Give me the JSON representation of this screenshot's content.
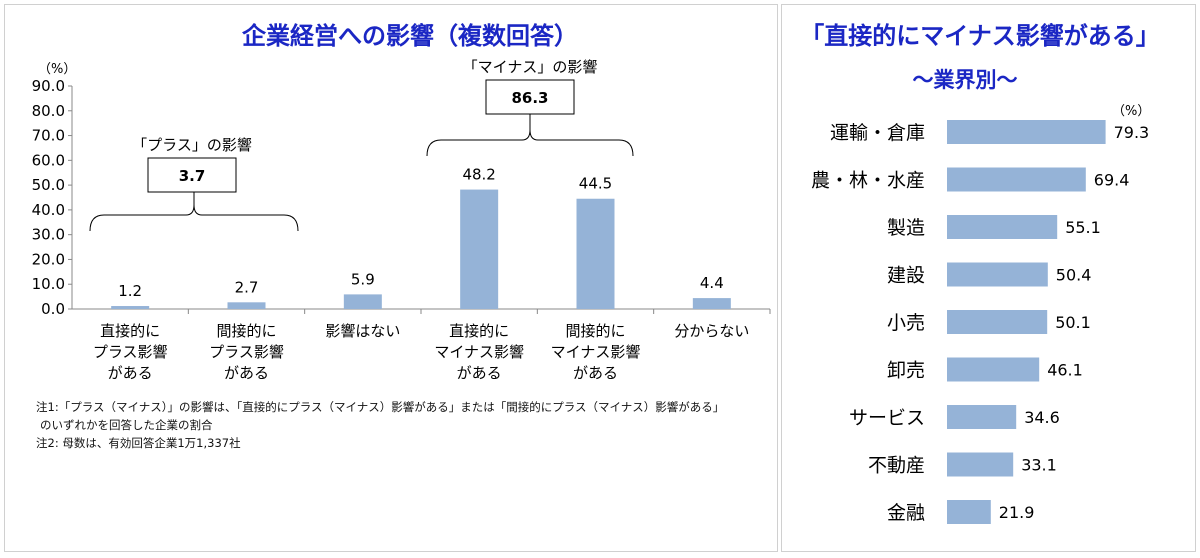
{
  "left_title": "企業経営への影響（複数回答）",
  "right_title": "「直接的にマイナス影響がある」",
  "right_subtitle": "～業界別～",
  "colors": {
    "title": "#1b27c4",
    "bar": "#95b3d7"
  },
  "notes": [
    "注1:「プラス（マイナス）」の影響は、「直接的にプラス（マイナス）影響がある」または「間接的にプラス（マイナス）影響がある」",
    "のいずれかを回答した企業の割合",
    "注2: 母数は、有効回答企業1万1,337社"
  ],
  "chart_data": [
    {
      "type": "bar",
      "orientation": "vertical",
      "title": "企業経営への影響（複数回答）",
      "unit": "（%）",
      "ylim": [
        0,
        90
      ],
      "yticks": [
        "0.0",
        "10.0",
        "20.0",
        "30.0",
        "40.0",
        "50.0",
        "60.0",
        "70.0",
        "80.0",
        "90.0"
      ],
      "categories": [
        [
          "直接的に",
          "プラス影響",
          "がある"
        ],
        [
          "間接的に",
          "プラス影響",
          "がある"
        ],
        [
          "影響はない"
        ],
        [
          "直接的に",
          "マイナス影響",
          "がある"
        ],
        [
          "間接的に",
          "マイナス影響",
          "がある"
        ],
        [
          "分からない"
        ]
      ],
      "values": [
        1.2,
        2.7,
        5.9,
        48.2,
        44.5,
        4.4
      ],
      "value_labels": [
        "1.2",
        "2.7",
        "5.9",
        "48.2",
        "44.5",
        "4.4"
      ],
      "annotations": [
        {
          "label": "「プラス」の影響",
          "value": "3.7"
        },
        {
          "label": "「マイナス」の影響",
          "value": "86.3"
        }
      ]
    },
    {
      "type": "bar",
      "orientation": "horizontal",
      "title": "「直接的にマイナス影響がある」",
      "subtitle": "～業界別～",
      "unit": "（%）",
      "categories": [
        "運輸・倉庫",
        "農・林・水産",
        "製造",
        "建設",
        "小売",
        "卸売",
        "サービス",
        "不動産",
        "金融"
      ],
      "values": [
        79.3,
        69.4,
        55.1,
        50.4,
        50.1,
        46.1,
        34.6,
        33.1,
        21.9
      ],
      "value_labels": [
        "79.3",
        "69.4",
        "55.1",
        "50.4",
        "50.1",
        "46.1",
        "34.6",
        "33.1",
        "21.9"
      ]
    }
  ]
}
